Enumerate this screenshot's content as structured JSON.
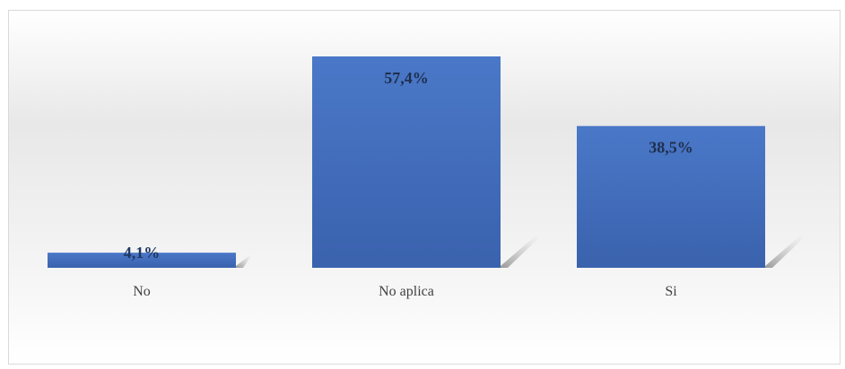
{
  "chart_data": {
    "type": "bar",
    "categories": [
      "No",
      "No aplica",
      "Si"
    ],
    "values": [
      4.1,
      57.4,
      38.5
    ],
    "data_labels": [
      "4,1%",
      "57,4%",
      "38,5%"
    ],
    "title": "",
    "xlabel": "",
    "ylabel": "",
    "ylim": [
      0,
      57.4
    ],
    "grid": false,
    "legend": "none",
    "colors": {
      "bar": "#4472c4",
      "bar_dark": "#3a62ad",
      "shadow": "#8c8c8c"
    }
  }
}
